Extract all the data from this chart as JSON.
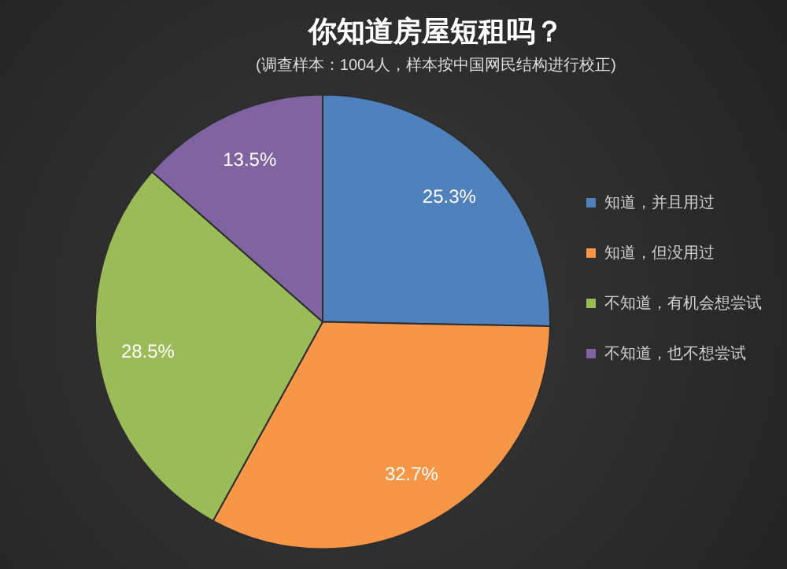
{
  "chart_data": {
    "type": "pie",
    "title": "你知道房屋短租吗？",
    "subtitle": "(调查样本：1004人，样本按中国网民结构进行校正)",
    "categories": [
      "知道，并且用过",
      "知道，但没用过",
      "不知道，有机会想尝试",
      "不知道，也不想尝试"
    ],
    "values": [
      25.3,
      32.7,
      28.5,
      13.5
    ],
    "colors": [
      "#4f81bd",
      "#f79646",
      "#9bbb59",
      "#8064a2"
    ],
    "value_labels": [
      "25.3%",
      "32.7%",
      "28.5%",
      "13.5%"
    ],
    "legend": "right"
  }
}
